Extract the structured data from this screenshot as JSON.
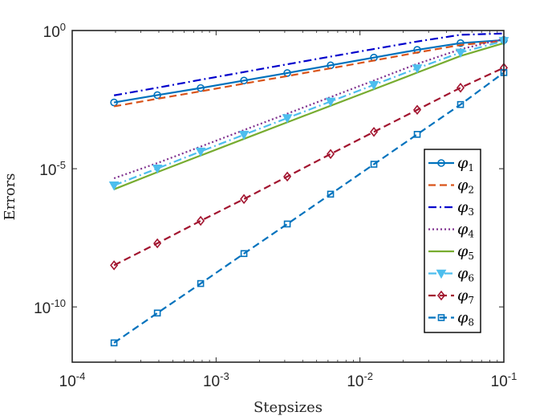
{
  "chart_data": {
    "type": "line",
    "title": "",
    "xlabel": "Stepsizes",
    "ylabel": "Errors",
    "xscale": "log",
    "yscale": "log",
    "xlim": [
      0.0001,
      0.1
    ],
    "ylim": [
      1e-12,
      1
    ],
    "grid": false,
    "legend_position": "right",
    "x_ticks": [
      {
        "value": 0.0001,
        "base": "10",
        "exp": "-4"
      },
      {
        "value": 0.001,
        "base": "10",
        "exp": "-3"
      },
      {
        "value": 0.01,
        "base": "10",
        "exp": "-2"
      },
      {
        "value": 0.1,
        "base": "10",
        "exp": "-1"
      }
    ],
    "y_ticks": [
      {
        "value": 1,
        "base": "10",
        "exp": "0"
      },
      {
        "value": 1e-05,
        "base": "10",
        "exp": "-5"
      },
      {
        "value": 1e-10,
        "base": "10",
        "exp": "-10"
      }
    ],
    "x": [
      0.0001953125,
      0.000390625,
      0.00078125,
      0.0015625,
      0.003125,
      0.00625,
      0.0125,
      0.025,
      0.05,
      0.1
    ],
    "series": [
      {
        "name": "φ",
        "sub": "1",
        "color": "#0072BD",
        "dash": "solid",
        "marker": "circle",
        "values": [
          0.0025,
          0.0046,
          0.0083,
          0.0155,
          0.029,
          0.055,
          0.105,
          0.2,
          0.35,
          0.45
        ]
      },
      {
        "name": "φ",
        "sub": "2",
        "color": "#D95319",
        "dash": "dashed",
        "marker": "none",
        "values": [
          0.0018,
          0.0034,
          0.0063,
          0.012,
          0.0225,
          0.043,
          0.082,
          0.16,
          0.3,
          0.42
        ]
      },
      {
        "name": "φ",
        "sub": "3",
        "color": "#0000CC",
        "dash": "dashdot",
        "marker": "none",
        "values": [
          0.0045,
          0.0085,
          0.0165,
          0.0315,
          0.06,
          0.114,
          0.214,
          0.4,
          0.7,
          0.78
        ]
      },
      {
        "name": "φ",
        "sub": "4",
        "color": "#7E2F8E",
        "dash": "dotted",
        "marker": "none",
        "values": [
          4.5e-06,
          1.6e-05,
          6.3e-05,
          0.00025,
          0.00098,
          0.0039,
          0.0155,
          0.062,
          0.21,
          0.5
        ]
      },
      {
        "name": "φ",
        "sub": "5",
        "color": "#77AC30",
        "dash": "solid",
        "marker": "none",
        "values": [
          1.8e-06,
          7.5e-06,
          3e-05,
          0.00012,
          0.00048,
          0.0019,
          0.0075,
          0.03,
          0.12,
          0.35
        ]
      },
      {
        "name": "φ",
        "sub": "6",
        "color": "#4DBEEE",
        "dash": "dashdot",
        "marker": "triangle-down",
        "values": [
          2.5e-06,
          1.02e-05,
          4.2e-05,
          0.00017,
          0.00068,
          0.0027,
          0.0108,
          0.043,
          0.16,
          0.42
        ]
      },
      {
        "name": "φ",
        "sub": "7",
        "color": "#A2142F",
        "dash": "dashed",
        "marker": "diamond",
        "values": [
          3.2e-09,
          2e-08,
          1.3e-07,
          8e-07,
          5.2e-06,
          3.4e-05,
          0.000215,
          0.00135,
          0.0085,
          0.045
        ]
      },
      {
        "name": "φ",
        "sub": "8",
        "color": "#0072BD",
        "dash": "dashed",
        "marker": "square",
        "values": [
          5e-12,
          6e-11,
          7e-10,
          8.5e-09,
          1e-07,
          1.2e-06,
          1.45e-05,
          0.000175,
          0.0021,
          0.03
        ]
      }
    ]
  }
}
